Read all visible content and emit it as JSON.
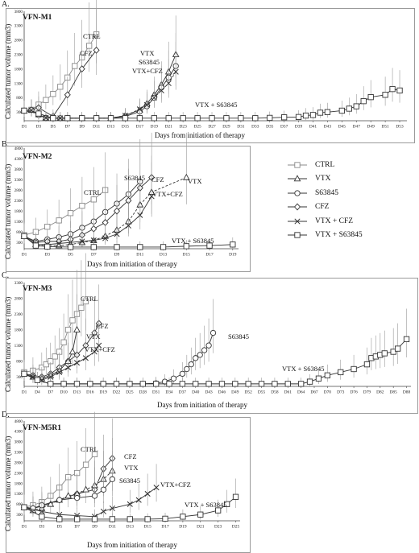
{
  "chart_data": [
    {
      "type": "line",
      "panel": "A.",
      "title": "VFN-M1",
      "ylabel": "Calculated tumor volume (mm3)",
      "xlabel": "Days from initiation of therapy",
      "ylim": [
        0,
        3800
      ],
      "yticks": [
        "300",
        "800",
        "1300",
        "1800",
        "2300",
        "2800",
        "3300",
        "3800"
      ],
      "x_ticks": [
        "D1",
        "D3",
        "D5",
        "D7",
        "D9",
        "D11",
        "D13",
        "D15",
        "D17",
        "D19",
        "D21",
        "D23",
        "D25",
        "D27",
        "D29",
        "D31",
        "D33",
        "D35",
        "D37",
        "D39",
        "D41",
        "D43",
        "D45",
        "D47",
        "D49",
        "D51",
        "D53"
      ],
      "series": [
        {
          "name": "CTRL",
          "marker": "square",
          "dash": false,
          "color": "#8a8a8a",
          "x": [
            1,
            2,
            3,
            4,
            5,
            6,
            7,
            8,
            9,
            10,
            11
          ],
          "y": [
            350,
            380,
            560,
            720,
            930,
            1180,
            1500,
            1900,
            2200,
            2600,
            3000
          ]
        },
        {
          "name": "CFZ",
          "marker": "diamond",
          "dash": false,
          "color": "#333333",
          "x": [
            1,
            2,
            3,
            5,
            7,
            9,
            11
          ],
          "y": [
            350,
            380,
            450,
            150,
            900,
            1800,
            2450
          ]
        },
        {
          "name": "VTX",
          "marker": "triangle",
          "dash": false,
          "color": "#333333",
          "x": [
            1,
            2,
            3,
            4,
            5,
            6,
            7,
            9,
            11,
            13,
            15,
            17,
            18,
            19,
            20,
            21,
            22
          ],
          "y": [
            350,
            370,
            220,
            100,
            90,
            90,
            90,
            90,
            90,
            90,
            180,
            380,
            600,
            900,
            1250,
            1700,
            2300
          ]
        },
        {
          "name": "S63845",
          "marker": "circle",
          "dash": false,
          "color": "#333333",
          "x": [
            1,
            2,
            3,
            4,
            5,
            6,
            7,
            9,
            11,
            13,
            15,
            17,
            18,
            19,
            20,
            21,
            22
          ],
          "y": [
            350,
            370,
            200,
            100,
            90,
            90,
            90,
            90,
            90,
            90,
            150,
            320,
            500,
            800,
            1150,
            1500,
            1900
          ]
        },
        {
          "name": "VTX+CFZ",
          "marker": "x",
          "dash": true,
          "color": "#333333",
          "x": [
            1,
            2,
            3,
            4,
            5,
            6,
            7,
            9,
            11,
            13,
            15,
            17,
            18,
            19,
            20,
            21,
            22
          ],
          "y": [
            350,
            360,
            210,
            100,
            90,
            90,
            90,
            90,
            90,
            90,
            180,
            400,
            550,
            800,
            1050,
            1300,
            1700
          ]
        },
        {
          "name": "VTX + S63845",
          "marker": "square",
          "dash": false,
          "color": "#333333",
          "x": [
            1,
            3,
            5,
            7,
            9,
            11,
            13,
            15,
            17,
            19,
            21,
            23,
            25,
            27,
            29,
            31,
            33,
            35,
            37,
            39,
            40,
            41,
            42,
            43,
            45,
            46,
            47,
            48,
            49,
            51,
            52,
            53
          ],
          "y": [
            350,
            250,
            90,
            90,
            90,
            90,
            90,
            90,
            90,
            90,
            90,
            90,
            90,
            90,
            90,
            90,
            90,
            100,
            120,
            130,
            180,
            200,
            280,
            300,
            350,
            420,
            500,
            680,
            820,
            900,
            1100,
            1050
          ]
        }
      ],
      "annotations": [
        "CTRL",
        "CFZ",
        "VTX",
        "S63845",
        "VTX+CFZ",
        "VTX + S63845"
      ]
    },
    {
      "type": "line",
      "panel": "B.",
      "title": "VFN-M2",
      "ylabel": "Calculated tumor volume (mm3)",
      "xlabel": "Days from initiation of therapy",
      "ylim": [
        0,
        4800
      ],
      "yticks": [
        "300",
        "800",
        "1300",
        "1800",
        "2300",
        "2800",
        "3300",
        "3800",
        "4300",
        "4800"
      ],
      "x_ticks": [
        "D1",
        "D3",
        "D5",
        "D7",
        "D9",
        "D11",
        "D13",
        "D15",
        "D17",
        "D19"
      ],
      "series": [
        {
          "name": "CTRL",
          "marker": "square",
          "dash": false,
          "color": "#8a8a8a",
          "x": [
            1,
            2,
            3,
            4,
            5,
            6,
            7,
            8
          ],
          "y": [
            650,
            800,
            1050,
            1350,
            1700,
            2050,
            2350,
            2800
          ]
        },
        {
          "name": "S63845",
          "marker": "circle",
          "dash": false,
          "color": "#333333",
          "x": [
            1,
            2,
            3,
            4,
            5,
            6,
            7,
            8,
            9,
            10,
            11
          ],
          "y": [
            600,
            350,
            450,
            550,
            700,
            1000,
            1300,
            1750,
            2150,
            2600,
            3200
          ]
        },
        {
          "name": "CFZ",
          "marker": "diamond",
          "dash": false,
          "color": "#333333",
          "x": [
            1,
            2,
            3,
            4,
            5,
            6,
            7,
            8,
            9,
            10,
            11,
            12
          ],
          "y": [
            600,
            300,
            350,
            350,
            450,
            650,
            950,
            1250,
            1800,
            2300,
            2900,
            3400
          ]
        },
        {
          "name": "VTX",
          "marker": "triangle",
          "dash": true,
          "color": "#333333",
          "x": [
            1,
            2,
            3,
            4,
            5,
            6,
            7,
            8,
            9,
            10,
            11,
            12,
            15
          ],
          "y": [
            600,
            200,
            150,
            150,
            200,
            300,
            400,
            600,
            900,
            1300,
            2100,
            2700,
            3400
          ]
        },
        {
          "name": "VTX + CFZ",
          "marker": "x",
          "dash": false,
          "color": "#333333",
          "x": [
            1,
            2,
            3,
            4,
            5,
            6,
            7,
            8,
            9,
            10,
            11,
            12
          ],
          "y": [
            600,
            200,
            200,
            250,
            300,
            350,
            400,
            500,
            700,
            1100,
            1600,
            2500
          ]
        },
        {
          "name": "VTX + S63845",
          "marker": "square",
          "dash": false,
          "color": "#333333",
          "x": [
            1,
            2,
            3,
            5,
            7,
            9,
            11,
            13,
            15,
            17,
            19
          ],
          "y": [
            600,
            150,
            100,
            80,
            80,
            80,
            80,
            80,
            120,
            150,
            200
          ]
        }
      ],
      "annotations": [
        "CTRL",
        "S63845",
        "CFZ",
        "VTX",
        "VTX+CFZ",
        "VTX + S63845"
      ]
    },
    {
      "type": "line",
      "panel": "C.",
      "title": "VFN-M3",
      "ylabel": "Calculated tumor volume (mm3)",
      "xlabel": "Days from initiation of therapy",
      "ylim": [
        0,
        3300
      ],
      "yticks": [
        "300",
        "800",
        "1300",
        "1800",
        "2300",
        "2800",
        "3300"
      ],
      "x_ticks": [
        "D1",
        "D4",
        "D7",
        "D10",
        "D13",
        "D16",
        "D19",
        "D22",
        "D25",
        "D28",
        "D31",
        "D34",
        "D37",
        "D40",
        "D43",
        "D46",
        "D49",
        "D52",
        "D55",
        "D58",
        "D61",
        "D64",
        "D67",
        "D70",
        "D73",
        "D76",
        "D79",
        "D82",
        "D85",
        "D88"
      ],
      "series": [
        {
          "name": "CTRL",
          "marker": "square",
          "dash": false,
          "color": "#8a8a8a",
          "x": [
            1,
            3,
            5,
            6,
            7,
            8,
            9,
            10,
            11,
            12,
            13,
            14,
            15
          ],
          "y": [
            450,
            500,
            600,
            700,
            800,
            950,
            1100,
            1400,
            1800,
            2100,
            2300,
            2500,
            2700
          ]
        },
        {
          "name": "CFZ",
          "marker": "diamond",
          "dash": false,
          "color": "#333333",
          "x": [
            1,
            3,
            5,
            7,
            9,
            11,
            13,
            15,
            17,
            18
          ],
          "y": [
            400,
            350,
            300,
            400,
            600,
            800,
            1000,
            1300,
            1700,
            2000
          ]
        },
        {
          "name": "VTX",
          "marker": "triangle",
          "dash": false,
          "color": "#333333",
          "x": [
            1,
            3,
            5,
            7,
            9,
            11,
            12,
            13
          ],
          "y": [
            400,
            300,
            250,
            350,
            500,
            800,
            1100,
            1800
          ]
        },
        {
          "name": "VTX+CFZ",
          "marker": "x",
          "dash": false,
          "color": "#333333",
          "x": [
            1,
            3,
            5,
            7,
            9,
            11,
            13,
            15,
            17,
            18
          ],
          "y": [
            400,
            300,
            200,
            300,
            450,
            600,
            750,
            900,
            1100,
            1300
          ]
        },
        {
          "name": "S63845",
          "marker": "circle",
          "dash": false,
          "color": "#333333",
          "x": [
            1,
            4,
            7,
            10,
            13,
            16,
            19,
            22,
            25,
            28,
            31,
            33,
            35,
            37,
            38,
            39,
            40,
            41,
            42,
            43,
            44
          ],
          "y": [
            400,
            200,
            80,
            80,
            80,
            80,
            80,
            80,
            80,
            80,
            100,
            150,
            250,
            400,
            550,
            700,
            900,
            1000,
            1150,
            1300,
            1700
          ]
        },
        {
          "name": "VTX + S63845",
          "marker": "square",
          "dash": false,
          "color": "#333333",
          "x": [
            1,
            4,
            7,
            10,
            13,
            16,
            19,
            22,
            25,
            28,
            31,
            34,
            37,
            40,
            43,
            46,
            49,
            52,
            55,
            58,
            61,
            64,
            66,
            68,
            70,
            73,
            76,
            79,
            80,
            81,
            82,
            83,
            85,
            86,
            88
          ],
          "y": [
            400,
            200,
            80,
            80,
            80,
            80,
            80,
            80,
            80,
            80,
            80,
            80,
            80,
            80,
            80,
            80,
            80,
            80,
            80,
            80,
            80,
            80,
            150,
            250,
            350,
            450,
            550,
            700,
            900,
            950,
            1000,
            1050,
            1100,
            1200,
            1500
          ]
        }
      ],
      "annotations": [
        "CTRL",
        "CFZ",
        "VTX",
        "VTX+CFZ",
        "S63845",
        "VTX + S63845"
      ]
    },
    {
      "type": "line",
      "panel": "D.",
      "title": "VFN-M5R1",
      "ylabel": "Calculated tumor volume (mm3)",
      "xlabel": "Days from initiation of therapy",
      "ylim": [
        0,
        4800
      ],
      "yticks": [
        "300",
        "800",
        "1300",
        "1800",
        "2300",
        "2800",
        "3300",
        "3800",
        "4300",
        "4800"
      ],
      "x_ticks": [
        "D1",
        "D3",
        "D5",
        "D7",
        "D9",
        "D11",
        "D13",
        "D15",
        "D17",
        "D19",
        "D21",
        "D23",
        "D25"
      ],
      "series": [
        {
          "name": "CTRL",
          "marker": "square",
          "dash": false,
          "color": "#8a8a8a",
          "x": [
            1,
            2,
            3,
            4,
            5,
            6,
            7,
            8,
            9
          ],
          "y": [
            650,
            750,
            900,
            1200,
            1600,
            2100,
            2300,
            2700,
            3200
          ]
        },
        {
          "name": "CFZ",
          "marker": "diamond",
          "dash": false,
          "color": "#333333",
          "x": [
            1,
            2,
            3,
            5,
            7,
            9,
            10,
            11
          ],
          "y": [
            650,
            600,
            700,
            1000,
            1300,
            1500,
            2500,
            3000
          ]
        },
        {
          "name": "VTX",
          "marker": "triangle",
          "dash": true,
          "color": "#333333",
          "x": [
            1,
            2,
            3,
            4,
            5,
            6,
            7,
            8,
            9,
            10,
            11
          ],
          "y": [
            650,
            500,
            600,
            800,
            1000,
            1200,
            1300,
            1500,
            1700,
            2000,
            2400
          ]
        },
        {
          "name": "S63845",
          "marker": "circle",
          "dash": false,
          "color": "#333333",
          "x": [
            1,
            2,
            3,
            5,
            7,
            9,
            10,
            11
          ],
          "y": [
            650,
            600,
            750,
            1000,
            1100,
            1200,
            1500,
            2000
          ]
        },
        {
          "name": "VTX+CFZ",
          "marker": "x",
          "dash": false,
          "color": "#333333",
          "x": [
            1,
            3,
            5,
            7,
            9,
            10,
            11,
            13,
            14,
            15,
            16
          ],
          "y": [
            650,
            450,
            300,
            250,
            200,
            450,
            600,
            800,
            1000,
            1300,
            1600
          ]
        },
        {
          "name": "VTX + S63845",
          "marker": "square",
          "dash": false,
          "color": "#333333",
          "x": [
            1,
            3,
            5,
            7,
            9,
            11,
            13,
            15,
            17,
            19,
            21,
            23,
            24,
            25
          ],
          "y": [
            650,
            200,
            80,
            80,
            80,
            80,
            80,
            80,
            100,
            200,
            300,
            500,
            800,
            1150
          ]
        }
      ],
      "annotations": [
        "CTRL",
        "CFZ",
        "VTX",
        "S63845",
        "VTX+CFZ",
        "VTX + S63845"
      ]
    }
  ],
  "legend": [
    {
      "label": "CTRL",
      "marker": "square",
      "color": "#8a8a8a"
    },
    {
      "label": "VTX",
      "marker": "triangle",
      "color": "#333333"
    },
    {
      "label": "S63845",
      "marker": "circle",
      "color": "#333333"
    },
    {
      "label": "CFZ",
      "marker": "diamond",
      "color": "#333333"
    },
    {
      "label": "VTX + CFZ",
      "marker": "x",
      "color": "#333333"
    },
    {
      "label": "VTX + S63845",
      "marker": "square",
      "color": "#333333"
    }
  ]
}
